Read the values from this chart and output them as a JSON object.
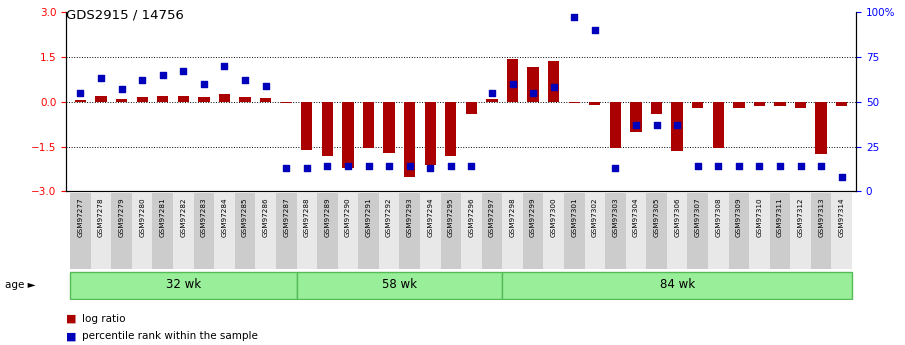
{
  "title": "GDS2915 / 14756",
  "samples": [
    "GSM97277",
    "GSM97278",
    "GSM97279",
    "GSM97280",
    "GSM97281",
    "GSM97282",
    "GSM97283",
    "GSM97284",
    "GSM97285",
    "GSM97286",
    "GSM97287",
    "GSM97288",
    "GSM97289",
    "GSM97290",
    "GSM97291",
    "GSM97292",
    "GSM97293",
    "GSM97294",
    "GSM97295",
    "GSM97296",
    "GSM97297",
    "GSM97298",
    "GSM97299",
    "GSM97300",
    "GSM97301",
    "GSM97302",
    "GSM97303",
    "GSM97304",
    "GSM97305",
    "GSM97306",
    "GSM97307",
    "GSM97308",
    "GSM97309",
    "GSM97310",
    "GSM97311",
    "GSM97312",
    "GSM97313",
    "GSM97314"
  ],
  "log_ratio": [
    0.07,
    0.18,
    0.08,
    0.15,
    0.2,
    0.19,
    0.15,
    0.25,
    0.15,
    0.13,
    -0.05,
    -1.6,
    -1.8,
    -2.2,
    -1.55,
    -1.7,
    -2.5,
    -2.1,
    -1.8,
    -0.4,
    0.1,
    1.42,
    1.15,
    1.35,
    -0.05,
    -0.1,
    -1.55,
    -1.0,
    -0.4,
    -1.65,
    -0.2,
    -1.55,
    -0.2,
    -0.15,
    -0.15,
    -0.2,
    -1.75,
    -0.15
  ],
  "percentile": [
    55,
    63,
    57,
    62,
    65,
    67,
    60,
    70,
    62,
    59,
    13,
    13,
    14,
    14,
    14,
    14,
    14,
    13,
    14,
    14,
    55,
    60,
    55,
    58,
    97,
    90,
    13,
    37,
    37,
    37,
    14,
    14,
    14,
    14,
    14,
    14,
    14,
    8
  ],
  "groups": [
    {
      "label": "32 wk",
      "start": 0,
      "end": 10
    },
    {
      "label": "58 wk",
      "start": 11,
      "end": 20
    },
    {
      "label": "84 wk",
      "start": 21,
      "end": 37
    }
  ],
  "ylim": [
    -3,
    3
  ],
  "y_left_ticks": [
    -3,
    -1.5,
    0,
    1.5,
    3
  ],
  "y_right_ticks": [
    0,
    25,
    50,
    75,
    100
  ],
  "dotted_lines": [
    -1.5,
    0,
    1.5
  ],
  "bar_color": "#aa0000",
  "dot_color": "#0000bb",
  "bar_width": 0.55,
  "group_color": "#99ee99",
  "group_border_color": "#55bb55",
  "legend_bar_color": "#aa0000",
  "legend_dot_color": "#0000bb",
  "tick_bg_even": "#cccccc",
  "tick_bg_odd": "#e8e8e8"
}
